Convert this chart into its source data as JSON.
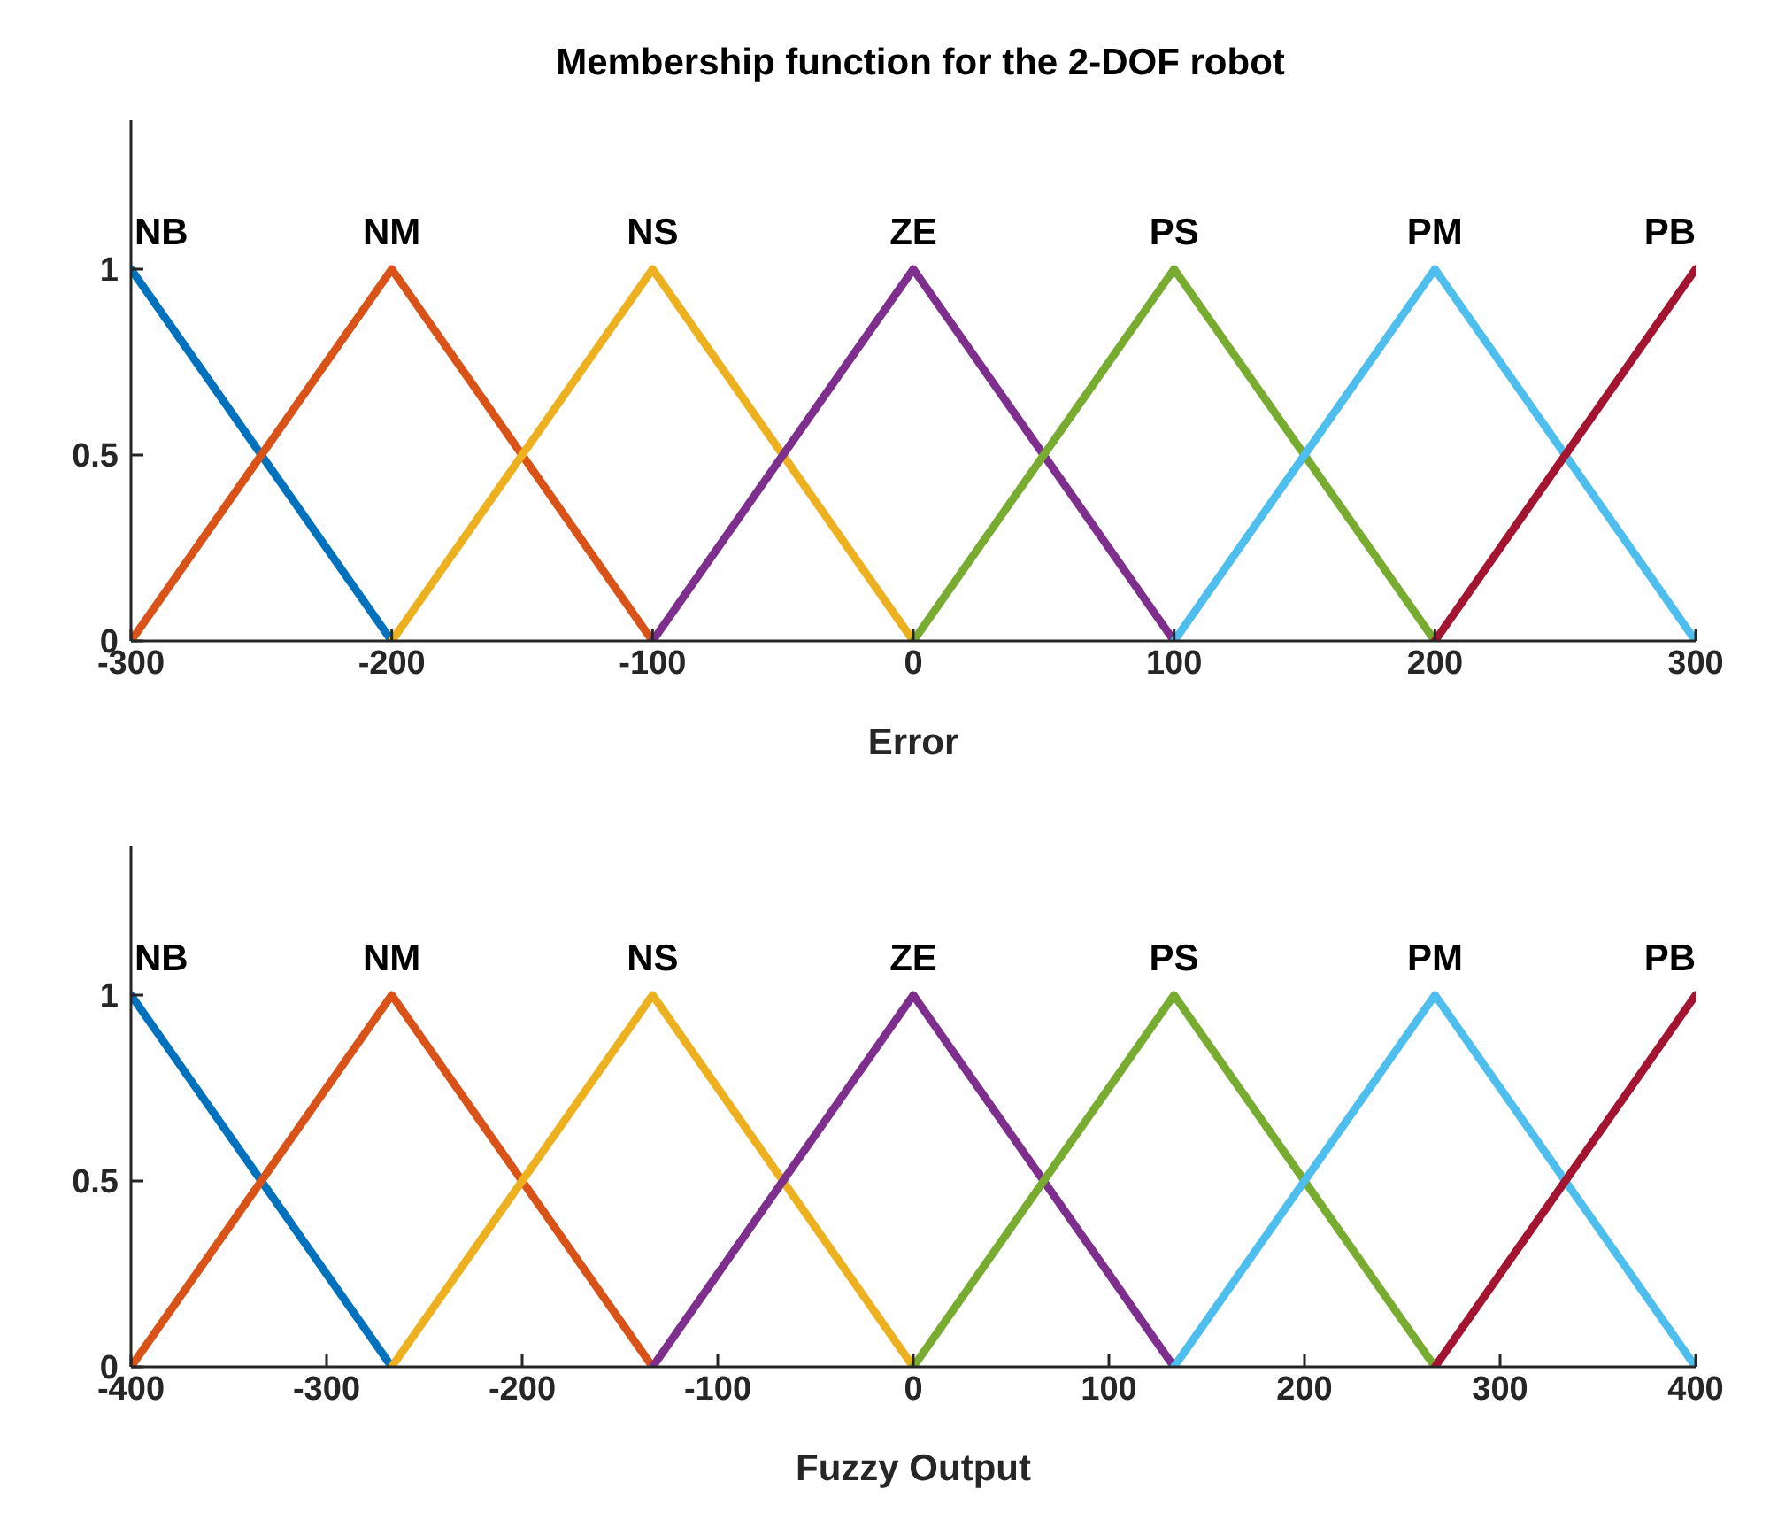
{
  "chart_data": [
    {
      "type": "line",
      "title": "Membership function for the 2-DOF robot",
      "xlabel": "Error",
      "xlim": [
        -300,
        300
      ],
      "xticks": [
        -300,
        -200,
        -100,
        0,
        100,
        200,
        300
      ],
      "ylim": [
        0,
        1.4
      ],
      "yticks": [
        0,
        0.5,
        1
      ],
      "grid": false,
      "legend": false,
      "marker": "none",
      "line_style": "solid",
      "series": [
        {
          "name": "NB",
          "color": "#0072bd",
          "x": [
            -300,
            -200
          ],
          "values": [
            1,
            0
          ]
        },
        {
          "name": "NM",
          "color": "#d95319",
          "x": [
            -300,
            -200,
            -100
          ],
          "values": [
            0,
            1,
            0
          ]
        },
        {
          "name": "NS",
          "color": "#edb120",
          "x": [
            -200,
            -100,
            0
          ],
          "values": [
            0,
            1,
            0
          ]
        },
        {
          "name": "ZE",
          "color": "#7e2f8e",
          "x": [
            -100,
            0,
            100
          ],
          "values": [
            0,
            1,
            0
          ]
        },
        {
          "name": "PS",
          "color": "#77ac30",
          "x": [
            0,
            100,
            200
          ],
          "values": [
            0,
            1,
            0
          ]
        },
        {
          "name": "PM",
          "color": "#4dbeee",
          "x": [
            100,
            200,
            300
          ],
          "values": [
            0,
            1,
            0
          ]
        },
        {
          "name": "PB",
          "color": "#a2142f",
          "x": [
            200,
            300
          ],
          "values": [
            0,
            1
          ]
        }
      ]
    },
    {
      "type": "line",
      "xlabel": "Fuzzy Output",
      "xlim": [
        -400,
        400
      ],
      "xticks": [
        -400,
        -300,
        -200,
        -100,
        0,
        100,
        200,
        300,
        400
      ],
      "ylim": [
        0,
        1.4
      ],
      "yticks": [
        0,
        0.5,
        1
      ],
      "grid": false,
      "legend": false,
      "marker": "none",
      "line_style": "solid",
      "series": [
        {
          "name": "NB",
          "color": "#0072bd",
          "x": [
            -400,
            -266.7
          ],
          "values": [
            1,
            0
          ]
        },
        {
          "name": "NM",
          "color": "#d95319",
          "x": [
            -400,
            -266.7,
            -133.3
          ],
          "values": [
            0,
            1,
            0
          ]
        },
        {
          "name": "NS",
          "color": "#edb120",
          "x": [
            -266.7,
            -133.3,
            0
          ],
          "values": [
            0,
            1,
            0
          ]
        },
        {
          "name": "ZE",
          "color": "#7e2f8e",
          "x": [
            -133.3,
            0,
            133.3
          ],
          "values": [
            0,
            1,
            0
          ]
        },
        {
          "name": "PS",
          "color": "#77ac30",
          "x": [
            0,
            133.3,
            266.7
          ],
          "values": [
            0,
            1,
            0
          ]
        },
        {
          "name": "PM",
          "color": "#4dbeee",
          "x": [
            133.3,
            266.7,
            400
          ],
          "values": [
            0,
            1,
            0
          ]
        },
        {
          "name": "PB",
          "color": "#a2142f",
          "x": [
            266.7,
            400
          ],
          "values": [
            0,
            1
          ]
        }
      ]
    }
  ]
}
